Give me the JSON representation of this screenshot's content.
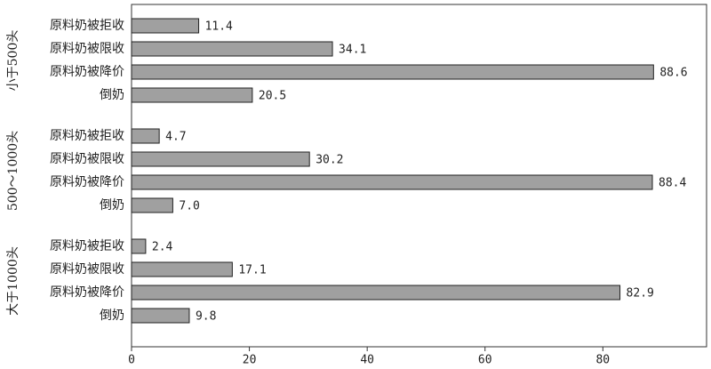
{
  "chart_data": {
    "type": "bar",
    "orientation": "horizontal",
    "color": "#a0a0a0",
    "groups": [
      {
        "name": "小于500头",
        "categories": [
          "原料奶被拒收",
          "原料奶被限收",
          "原料奶被降价",
          "倒奶"
        ],
        "values": [
          11.4,
          34.1,
          88.6,
          20.5
        ],
        "value_labels": [
          "11.4",
          "34.1",
          "88.6",
          "20.5"
        ]
      },
      {
        "name": "500～1000头",
        "categories": [
          "原料奶被拒收",
          "原料奶被限收",
          "原料奶被降价",
          "倒奶"
        ],
        "values": [
          4.7,
          30.2,
          88.4,
          7.0
        ],
        "value_labels": [
          "4.7",
          "30.2",
          "88.4",
          "7.0"
        ]
      },
      {
        "name": "大于1000头",
        "categories": [
          "原料奶被拒收",
          "原料奶被限收",
          "原料奶被降价",
          "倒奶"
        ],
        "values": [
          2.4,
          17.1,
          82.9,
          9.8
        ],
        "value_labels": [
          "2.4",
          "17.1",
          "82.9",
          "9.8"
        ]
      }
    ],
    "xlim": [
      0,
      97.6
    ],
    "xticks": [
      0,
      20,
      40,
      60,
      80
    ]
  }
}
